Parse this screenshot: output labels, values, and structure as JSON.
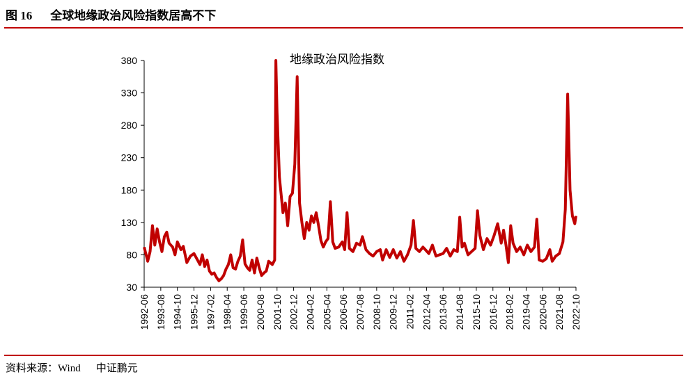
{
  "figure": {
    "number": "图 16",
    "title": "全球地缘政治风险指数居高不下"
  },
  "footer": {
    "source": "资料来源：Wind",
    "org": "中证鹏元"
  },
  "colors": {
    "accent": "#c00000",
    "series": "#c00000"
  },
  "chart_data": {
    "type": "line",
    "legend_position": "top-center",
    "grid": false,
    "ylim": [
      30,
      380
    ],
    "yticks": [
      30,
      80,
      130,
      180,
      230,
      280,
      330,
      380
    ],
    "xlim": [
      "1992-06",
      "2022-10"
    ],
    "xticks": [
      "1992-06",
      "1993-08",
      "1994-10",
      "1995-12",
      "1997-02",
      "1998-04",
      "1999-06",
      "2000-08",
      "2001-10",
      "2002-12",
      "2004-02",
      "2005-04",
      "2006-06",
      "2007-08",
      "2008-10",
      "2009-12",
      "2011-02",
      "2012-04",
      "2013-06",
      "2014-08",
      "2015-10",
      "2016-12",
      "2018-02",
      "2019-04",
      "2020-06",
      "2021-08",
      "2022-10"
    ],
    "series": [
      {
        "name": "地缘政治风险指数",
        "points": [
          [
            "1992-06",
            92
          ],
          [
            "1992-09",
            70
          ],
          [
            "1992-11",
            85
          ],
          [
            "1993-01",
            125
          ],
          [
            "1993-03",
            95
          ],
          [
            "1993-05",
            120
          ],
          [
            "1993-07",
            100
          ],
          [
            "1993-09",
            85
          ],
          [
            "1993-11",
            108
          ],
          [
            "1994-01",
            115
          ],
          [
            "1994-03",
            98
          ],
          [
            "1994-06",
            92
          ],
          [
            "1994-08",
            80
          ],
          [
            "1994-10",
            100
          ],
          [
            "1995-01",
            88
          ],
          [
            "1995-03",
            93
          ],
          [
            "1995-06",
            68
          ],
          [
            "1995-09",
            78
          ],
          [
            "1995-12",
            82
          ],
          [
            "1996-03",
            72
          ],
          [
            "1996-05",
            65
          ],
          [
            "1996-07",
            80
          ],
          [
            "1996-09",
            62
          ],
          [
            "1996-11",
            72
          ],
          [
            "1997-01",
            55
          ],
          [
            "1997-03",
            50
          ],
          [
            "1997-05",
            52
          ],
          [
            "1997-07",
            45
          ],
          [
            "1997-09",
            40
          ],
          [
            "1997-11",
            43
          ],
          [
            "1998-01",
            48
          ],
          [
            "1998-03",
            58
          ],
          [
            "1998-05",
            65
          ],
          [
            "1998-07",
            80
          ],
          [
            "1998-09",
            60
          ],
          [
            "1998-11",
            58
          ],
          [
            "1999-01",
            70
          ],
          [
            "1999-03",
            78
          ],
          [
            "1999-05",
            103
          ],
          [
            "1999-07",
            66
          ],
          [
            "1999-09",
            60
          ],
          [
            "1999-11",
            56
          ],
          [
            "2000-01",
            72
          ],
          [
            "2000-03",
            52
          ],
          [
            "2000-05",
            75
          ],
          [
            "2000-07",
            60
          ],
          [
            "2000-09",
            48
          ],
          [
            "2000-11",
            52
          ],
          [
            "2001-01",
            55
          ],
          [
            "2001-03",
            70
          ],
          [
            "2001-06",
            65
          ],
          [
            "2001-08",
            72
          ],
          [
            "2001-09",
            380
          ],
          [
            "2001-10",
            300
          ],
          [
            "2001-12",
            200
          ],
          [
            "2002-03",
            145
          ],
          [
            "2002-05",
            160
          ],
          [
            "2002-07",
            125
          ],
          [
            "2002-09",
            170
          ],
          [
            "2002-11",
            175
          ],
          [
            "2003-01",
            220
          ],
          [
            "2003-03",
            355
          ],
          [
            "2003-05",
            160
          ],
          [
            "2003-07",
            130
          ],
          [
            "2003-09",
            105
          ],
          [
            "2003-11",
            130
          ],
          [
            "2004-01",
            118
          ],
          [
            "2004-03",
            140
          ],
          [
            "2004-05",
            130
          ],
          [
            "2004-07",
            145
          ],
          [
            "2004-09",
            125
          ],
          [
            "2004-11",
            102
          ],
          [
            "2005-01",
            92
          ],
          [
            "2005-03",
            100
          ],
          [
            "2005-05",
            105
          ],
          [
            "2005-07",
            162
          ],
          [
            "2005-09",
            100
          ],
          [
            "2005-11",
            90
          ],
          [
            "2006-02",
            92
          ],
          [
            "2006-05",
            100
          ],
          [
            "2006-07",
            88
          ],
          [
            "2006-09",
            145
          ],
          [
            "2006-11",
            90
          ],
          [
            "2007-02",
            85
          ],
          [
            "2007-05",
            98
          ],
          [
            "2007-08",
            95
          ],
          [
            "2007-10",
            108
          ],
          [
            "2008-01",
            88
          ],
          [
            "2008-04",
            82
          ],
          [
            "2008-07",
            78
          ],
          [
            "2008-10",
            85
          ],
          [
            "2009-01",
            88
          ],
          [
            "2009-03",
            72
          ],
          [
            "2009-06",
            88
          ],
          [
            "2009-09",
            76
          ],
          [
            "2009-12",
            88
          ],
          [
            "2010-03",
            75
          ],
          [
            "2010-06",
            85
          ],
          [
            "2010-09",
            70
          ],
          [
            "2010-12",
            80
          ],
          [
            "2011-03",
            95
          ],
          [
            "2011-05",
            133
          ],
          [
            "2011-07",
            90
          ],
          [
            "2011-10",
            85
          ],
          [
            "2012-01",
            92
          ],
          [
            "2012-03",
            88
          ],
          [
            "2012-06",
            82
          ],
          [
            "2012-09",
            95
          ],
          [
            "2012-12",
            78
          ],
          [
            "2013-03",
            80
          ],
          [
            "2013-06",
            82
          ],
          [
            "2013-09",
            90
          ],
          [
            "2013-12",
            78
          ],
          [
            "2014-03",
            88
          ],
          [
            "2014-06",
            85
          ],
          [
            "2014-08",
            138
          ],
          [
            "2014-10",
            92
          ],
          [
            "2014-12",
            98
          ],
          [
            "2015-03",
            80
          ],
          [
            "2015-06",
            85
          ],
          [
            "2015-09",
            90
          ],
          [
            "2015-11",
            148
          ],
          [
            "2016-01",
            110
          ],
          [
            "2016-04",
            88
          ],
          [
            "2016-07",
            105
          ],
          [
            "2016-10",
            95
          ],
          [
            "2017-01",
            110
          ],
          [
            "2017-04",
            128
          ],
          [
            "2017-07",
            98
          ],
          [
            "2017-09",
            118
          ],
          [
            "2017-11",
            95
          ],
          [
            "2018-01",
            68
          ],
          [
            "2018-03",
            125
          ],
          [
            "2018-05",
            98
          ],
          [
            "2018-08",
            85
          ],
          [
            "2018-11",
            92
          ],
          [
            "2019-02",
            80
          ],
          [
            "2019-05",
            95
          ],
          [
            "2019-08",
            85
          ],
          [
            "2019-11",
            92
          ],
          [
            "2020-01",
            135
          ],
          [
            "2020-03",
            72
          ],
          [
            "2020-06",
            70
          ],
          [
            "2020-09",
            74
          ],
          [
            "2020-12",
            88
          ],
          [
            "2021-02",
            70
          ],
          [
            "2021-05",
            78
          ],
          [
            "2021-08",
            82
          ],
          [
            "2021-11",
            100
          ],
          [
            "2022-01",
            150
          ],
          [
            "2022-03",
            328
          ],
          [
            "2022-05",
            180
          ],
          [
            "2022-07",
            140
          ],
          [
            "2022-09",
            128
          ],
          [
            "2022-10",
            140
          ]
        ]
      }
    ]
  }
}
